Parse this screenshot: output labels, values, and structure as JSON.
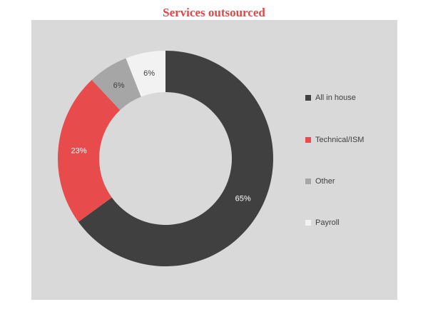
{
  "chart_data": {
    "type": "pie",
    "variant": "donut",
    "title": "Services outsourced",
    "categories": [
      "All in house",
      "Technical/ISM",
      "Other",
      "Payroll"
    ],
    "values": [
      65,
      23,
      6,
      6
    ],
    "data_labels": [
      "65%",
      "23%",
      "6%",
      "6%"
    ],
    "colors": [
      "#404040",
      "#e84b4b",
      "#a6a6a6",
      "#f2f2f2"
    ],
    "label_colors": [
      "#ffffff",
      "#ffffff",
      "#404040",
      "#404040"
    ],
    "legend_position": "right",
    "start_angle": "12 o'clock",
    "direction": "clockwise"
  }
}
